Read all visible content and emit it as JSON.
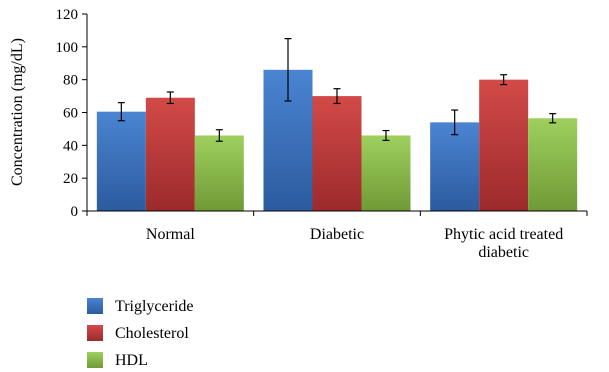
{
  "chart_data": {
    "type": "bar",
    "title": "",
    "xlabel": "",
    "ylabel": "Concentration (mg/dL)",
    "ylim": [
      0,
      120
    ],
    "yticks": [
      0,
      20,
      40,
      60,
      80,
      100,
      120
    ],
    "grid": false,
    "legend_position": "bottom-left",
    "categories": [
      [
        "Normal"
      ],
      [
        "Diabetic"
      ],
      [
        "Phytic acid treated",
        "diabetic"
      ]
    ],
    "series": [
      {
        "name": "Triglyceride",
        "color": "#3a72c0",
        "values": [
          60.5,
          86,
          54
        ],
        "errors": [
          5.5,
          19,
          7.5
        ]
      },
      {
        "name": "Cholesterol",
        "color": "#c0393a",
        "values": [
          69,
          70,
          80
        ],
        "errors": [
          3.5,
          4.5,
          3
        ]
      },
      {
        "name": "HDL",
        "color": "#8bc04a",
        "values": [
          46,
          46,
          56.5
        ],
        "errors": [
          3.5,
          3,
          2.8
        ]
      }
    ]
  }
}
